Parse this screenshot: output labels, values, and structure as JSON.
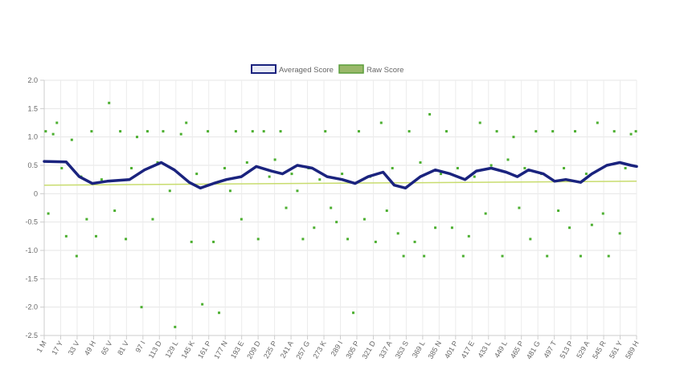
{
  "chart_data": {
    "type": "line",
    "legend": {
      "position": "top",
      "items": [
        {
          "label": "Averaged Score",
          "stroke": "#1a237e",
          "fill": "#e8eaf6"
        },
        {
          "label": "Raw Score",
          "stroke": "#5a9e3a",
          "fill": "#9ab86a"
        }
      ]
    },
    "ylim": [
      -2.5,
      2.0
    ],
    "yticks": [
      "2.0",
      "1.5",
      "1.0",
      "0.5",
      "0",
      "-0.5",
      "-1.0",
      "-1.5",
      "-2.0",
      "-2.5"
    ],
    "x_range": [
      1,
      1590
    ],
    "xtick_labels": [
      "1 M",
      "17 Y",
      "33 V",
      "49 H",
      "65 V",
      "81 V",
      "97 I",
      "113 D",
      "129 L",
      "145 K",
      "161 P",
      "177 N",
      "193 E",
      "209 D",
      "225 P",
      "241 A",
      "257 G",
      "273 K",
      "289 I",
      "305 P",
      "321 D",
      "337 A",
      "353 S",
      "369 L",
      "385 N",
      "401 P",
      "417 E",
      "433 L",
      "449 L",
      "465 P",
      "481 G",
      "497 T",
      "513 P",
      "529 A",
      "545 R",
      "561 Y",
      "589 H"
    ],
    "grid": true,
    "threshold_line": {
      "color": "#c8dc6e",
      "points": [
        [
          1,
          0.15
        ],
        [
          1590,
          0.22
        ]
      ]
    },
    "series": [
      {
        "name": "Averaged Score",
        "color": "#1a237e",
        "points": [
          [
            1,
            0.57
          ],
          [
            60,
            0.56
          ],
          [
            95,
            0.3
          ],
          [
            130,
            0.18
          ],
          [
            170,
            0.22
          ],
          [
            230,
            0.25
          ],
          [
            270,
            0.42
          ],
          [
            315,
            0.55
          ],
          [
            350,
            0.42
          ],
          [
            390,
            0.2
          ],
          [
            420,
            0.1
          ],
          [
            455,
            0.18
          ],
          [
            490,
            0.25
          ],
          [
            530,
            0.3
          ],
          [
            570,
            0.48
          ],
          [
            610,
            0.4
          ],
          [
            640,
            0.35
          ],
          [
            680,
            0.5
          ],
          [
            720,
            0.45
          ],
          [
            760,
            0.3
          ],
          [
            800,
            0.25
          ],
          [
            835,
            0.18
          ],
          [
            870,
            0.3
          ],
          [
            910,
            0.38
          ],
          [
            940,
            0.15
          ],
          [
            970,
            0.1
          ],
          [
            1010,
            0.3
          ],
          [
            1050,
            0.42
          ],
          [
            1090,
            0.35
          ],
          [
            1130,
            0.25
          ],
          [
            1160,
            0.4
          ],
          [
            1200,
            0.45
          ],
          [
            1240,
            0.38
          ],
          [
            1270,
            0.3
          ],
          [
            1300,
            0.42
          ],
          [
            1340,
            0.35
          ],
          [
            1370,
            0.22
          ],
          [
            1400,
            0.25
          ],
          [
            1440,
            0.2
          ],
          [
            1470,
            0.35
          ],
          [
            1510,
            0.5
          ],
          [
            1545,
            0.55
          ],
          [
            1575,
            0.5
          ],
          [
            1590,
            0.48
          ]
        ]
      },
      {
        "name": "Raw Score",
        "color": "#4caf30",
        "points": [
          [
            5,
            1.1
          ],
          [
            12,
            -0.35
          ],
          [
            25,
            1.05
          ],
          [
            35,
            1.25
          ],
          [
            48,
            0.45
          ],
          [
            60,
            -0.75
          ],
          [
            75,
            0.95
          ],
          [
            88,
            -1.1
          ],
          [
            100,
            0.3
          ],
          [
            115,
            -0.45
          ],
          [
            128,
            1.1
          ],
          [
            140,
            -0.75
          ],
          [
            155,
            0.25
          ],
          [
            175,
            1.6
          ],
          [
            190,
            -0.3
          ],
          [
            205,
            1.1
          ],
          [
            220,
            -0.8
          ],
          [
            235,
            0.45
          ],
          [
            250,
            1.0
          ],
          [
            262,
            -2.0
          ],
          [
            278,
            1.1
          ],
          [
            292,
            -0.45
          ],
          [
            305,
            0.55
          ],
          [
            320,
            1.1
          ],
          [
            338,
            0.05
          ],
          [
            352,
            -2.35
          ],
          [
            368,
            1.05
          ],
          [
            382,
            1.25
          ],
          [
            396,
            -0.85
          ],
          [
            410,
            0.35
          ],
          [
            425,
            -1.95
          ],
          [
            440,
            1.1
          ],
          [
            455,
            -0.85
          ],
          [
            470,
            -2.1
          ],
          [
            485,
            0.45
          ],
          [
            500,
            0.05
          ],
          [
            515,
            1.1
          ],
          [
            530,
            -0.45
          ],
          [
            545,
            0.55
          ],
          [
            560,
            1.1
          ],
          [
            575,
            -0.8
          ],
          [
            590,
            1.1
          ],
          [
            605,
            0.3
          ],
          [
            620,
            0.6
          ],
          [
            635,
            1.1
          ],
          [
            650,
            -0.25
          ],
          [
            665,
            0.35
          ],
          [
            680,
            0.05
          ],
          [
            695,
            -0.8
          ],
          [
            710,
            0.45
          ],
          [
            725,
            -0.6
          ],
          [
            740,
            0.25
          ],
          [
            755,
            1.1
          ],
          [
            770,
            -0.25
          ],
          [
            785,
            -0.5
          ],
          [
            800,
            0.35
          ],
          [
            815,
            -0.8
          ],
          [
            830,
            -2.1
          ],
          [
            845,
            1.1
          ],
          [
            860,
            -0.45
          ],
          [
            875,
            0.3
          ],
          [
            890,
            -0.85
          ],
          [
            905,
            1.25
          ],
          [
            920,
            -0.3
          ],
          [
            935,
            0.45
          ],
          [
            950,
            -0.7
          ],
          [
            965,
            -1.1
          ],
          [
            980,
            1.1
          ],
          [
            995,
            -0.85
          ],
          [
            1010,
            0.55
          ],
          [
            1020,
            -1.1
          ],
          [
            1035,
            1.4
          ],
          [
            1050,
            -0.6
          ],
          [
            1065,
            0.35
          ],
          [
            1080,
            1.1
          ],
          [
            1095,
            -0.6
          ],
          [
            1110,
            0.45
          ],
          [
            1125,
            -1.1
          ],
          [
            1140,
            -0.75
          ],
          [
            1155,
            0.3
          ],
          [
            1170,
            1.25
          ],
          [
            1185,
            -0.35
          ],
          [
            1200,
            0.5
          ],
          [
            1215,
            1.1
          ],
          [
            1230,
            -1.1
          ],
          [
            1245,
            0.6
          ],
          [
            1260,
            1.0
          ],
          [
            1275,
            -0.25
          ],
          [
            1290,
            0.45
          ],
          [
            1305,
            -0.8
          ],
          [
            1320,
            1.1
          ],
          [
            1335,
            0.35
          ],
          [
            1350,
            -1.1
          ],
          [
            1365,
            1.1
          ],
          [
            1380,
            -0.3
          ],
          [
            1395,
            0.45
          ],
          [
            1410,
            -0.6
          ],
          [
            1425,
            1.1
          ],
          [
            1440,
            -1.1
          ],
          [
            1455,
            0.35
          ],
          [
            1470,
            -0.55
          ],
          [
            1485,
            1.25
          ],
          [
            1500,
            -0.35
          ],
          [
            1515,
            -1.1
          ],
          [
            1530,
            1.1
          ],
          [
            1545,
            -0.7
          ],
          [
            1560,
            0.45
          ],
          [
            1575,
            1.05
          ],
          [
            1588,
            1.1
          ]
        ]
      }
    ]
  }
}
